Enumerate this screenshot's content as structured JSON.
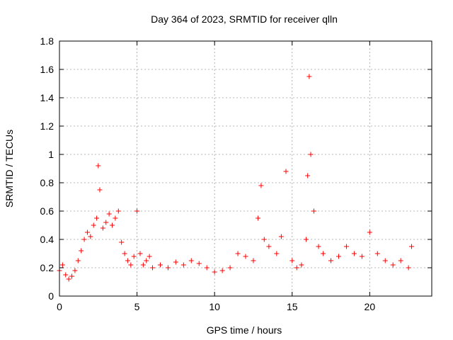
{
  "chart_data": {
    "type": "scatter",
    "title": "Day 364 of 2023, SRMTID for receiver qlln",
    "xlabel": "GPS time / hours",
    "ylabel": "SRMTID / TECUs",
    "xlim": [
      0,
      24
    ],
    "ylim": [
      0,
      1.8
    ],
    "xticks": [
      0,
      5,
      10,
      15,
      20
    ],
    "xtick_labels": [
      "0",
      "5",
      "10",
      "15",
      "20"
    ],
    "yticks": [
      0,
      0.2,
      0.4,
      0.6,
      0.8,
      1.0,
      1.2,
      1.4,
      1.6,
      1.8
    ],
    "ytick_labels": [
      "0",
      "0.2",
      "0.4",
      "0.6",
      "0.8",
      "1",
      "1.2",
      "1.4",
      "1.6",
      "1.8"
    ],
    "grid": true,
    "marker": "+",
    "color": "#ff0000",
    "series": [
      {
        "name": "SRMTID",
        "x": [
          0.0,
          0.2,
          0.4,
          0.6,
          0.8,
          1.0,
          1.2,
          1.4,
          1.6,
          1.8,
          2.0,
          2.2,
          2.4,
          2.5,
          2.6,
          2.8,
          3.0,
          3.2,
          3.4,
          3.6,
          3.8,
          4.0,
          4.2,
          4.4,
          4.6,
          4.8,
          5.0,
          5.2,
          5.4,
          5.6,
          5.8,
          6.0,
          6.5,
          7.0,
          7.5,
          8.0,
          8.5,
          9.0,
          9.5,
          10.0,
          10.5,
          11.0,
          11.5,
          12.0,
          12.5,
          12.8,
          13.0,
          13.2,
          13.5,
          14.0,
          14.3,
          14.6,
          15.0,
          15.3,
          15.6,
          15.9,
          16.0,
          16.1,
          16.2,
          16.4,
          16.7,
          17.0,
          17.5,
          18.0,
          18.5,
          19.0,
          19.5,
          20.0,
          20.5,
          21.0,
          21.5,
          22.0,
          22.5,
          22.7
        ],
        "y": [
          0.18,
          0.22,
          0.15,
          0.12,
          0.14,
          0.18,
          0.25,
          0.32,
          0.4,
          0.45,
          0.42,
          0.5,
          0.55,
          0.92,
          0.75,
          0.48,
          0.52,
          0.58,
          0.5,
          0.55,
          0.6,
          0.38,
          0.3,
          0.25,
          0.22,
          0.28,
          0.6,
          0.3,
          0.22,
          0.25,
          0.28,
          0.2,
          0.22,
          0.2,
          0.24,
          0.22,
          0.25,
          0.23,
          0.2,
          0.17,
          0.18,
          0.2,
          0.3,
          0.28,
          0.25,
          0.55,
          0.78,
          0.4,
          0.35,
          0.3,
          0.42,
          0.88,
          0.25,
          0.2,
          0.22,
          0.4,
          0.85,
          1.55,
          1.0,
          0.6,
          0.35,
          0.3,
          0.25,
          0.28,
          0.35,
          0.3,
          0.28,
          0.45,
          0.3,
          0.25,
          0.22,
          0.25,
          0.2,
          0.35
        ]
      }
    ]
  }
}
